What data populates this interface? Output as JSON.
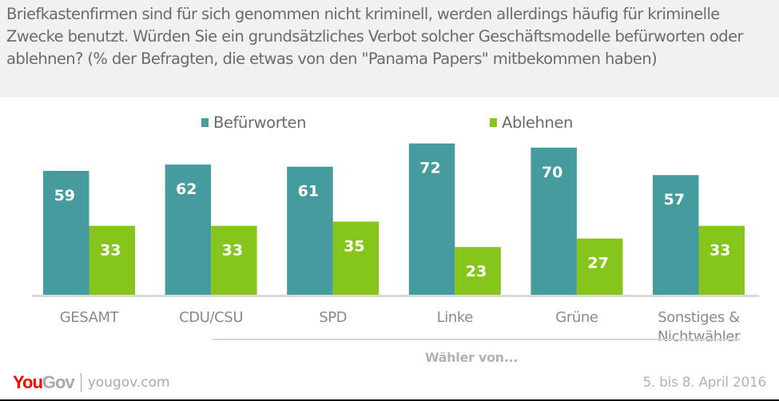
{
  "header": {
    "question": "Briefkastenfirmen sind für sich genommen nicht kriminell, werden allerdings häufig für kriminelle Zwecke benutzt. Würden Sie ein grundsätzliches Verbot solcher Geschäftsmodelle befürworten oder ablehnen? (% der Befragten, die etwas von den \"Panama Papers\" mitbekommen haben)"
  },
  "legend": [
    {
      "label": "Befürworten",
      "color": "#469b9e"
    },
    {
      "label": "Ablehnen",
      "color": "#86c61c"
    }
  ],
  "chart_data": {
    "type": "bar",
    "title": "Briefkastenfirmen sind für sich genommen nicht kriminell, werden allerdings häufig für kriminelle Zwecke benutzt. Würden Sie ein grundsätzliches Verbot solcher Geschäftsmodelle befürworten oder ablehnen? (% der Befragten, die etwas von den \"Panama Papers\" mitbekommen haben)",
    "categories": [
      "GESAMT",
      "CDU/CSU",
      "SPD",
      "Linke",
      "Grüne",
      "Sonstiges & Nichtwähler"
    ],
    "series": [
      {
        "name": "Befürworten",
        "color": "#469b9e",
        "values": [
          59,
          62,
          61,
          72,
          70,
          57
        ]
      },
      {
        "name": "Ablehnen",
        "color": "#86c61c",
        "values": [
          33,
          33,
          35,
          23,
          27,
          33
        ]
      }
    ],
    "xlabel": "Wähler von...",
    "group_annotation": {
      "label": "Wähler von...",
      "spans": [
        "CDU/CSU",
        "SPD",
        "Linke",
        "Grüne",
        "Sonstiges & Nichtwähler"
      ]
    },
    "ylabel": "",
    "ylim": [
      0,
      80
    ],
    "grid": false,
    "legend_position": "top-center",
    "data_labels": true
  },
  "category_lines": [
    [
      "GESAMT"
    ],
    [
      "CDU/CSU"
    ],
    [
      "SPD"
    ],
    [
      "Linke"
    ],
    [
      "Grüne"
    ],
    [
      "Sonstiges &",
      "Nichtwähler"
    ]
  ],
  "footer": {
    "brand_you": "You",
    "brand_gov": "Gov",
    "url": "yougov.com",
    "date": "5. bis 8. April 2016"
  }
}
